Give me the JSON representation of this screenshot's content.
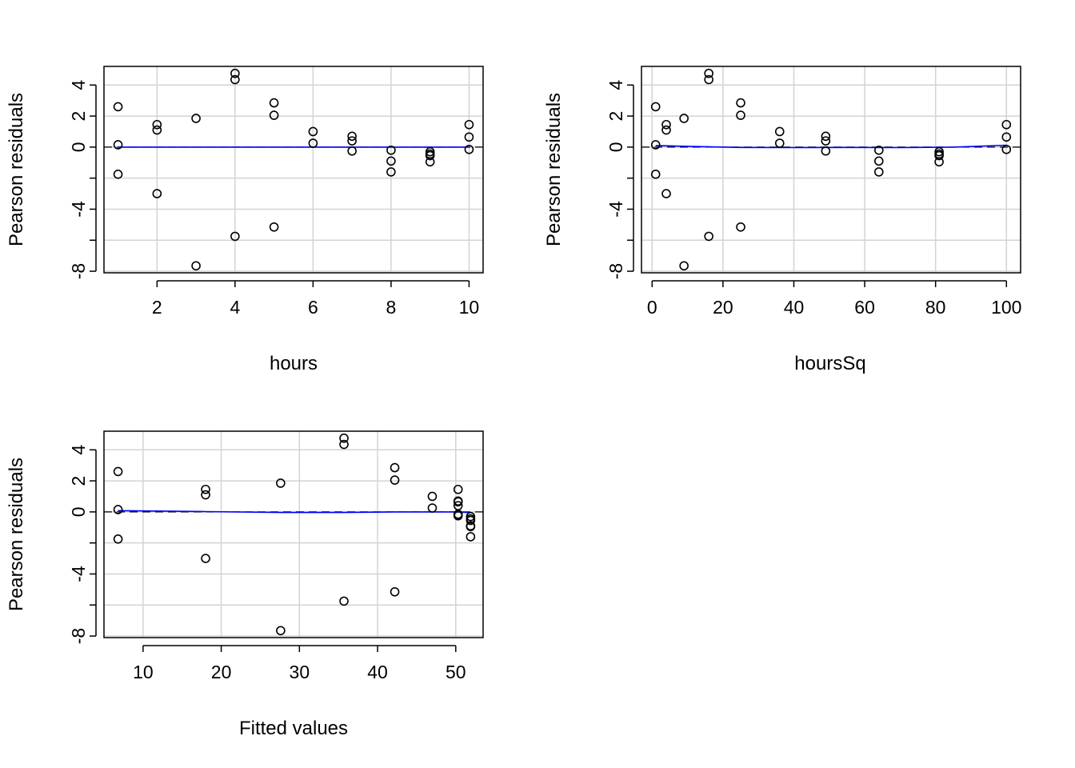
{
  "figure": {
    "background": "#ffffff",
    "grid_color": "#d3d3d3",
    "point_color": "#000000",
    "smooth_color": "#0000ff",
    "zero_line_color": "#000000"
  },
  "chart_data": [
    {
      "type": "scatter",
      "title": "",
      "xlabel": "hours",
      "ylabel": "Pearson residuals",
      "xlim": [
        0.64,
        10.36
      ],
      "ylim": [
        -8.1,
        5.2
      ],
      "x_ticks": [
        2,
        4,
        6,
        8,
        10
      ],
      "x_tick_labels": [
        "2",
        "4",
        "6",
        "8",
        "10"
      ],
      "y_ticks": [
        -8,
        -6,
        -4,
        -2,
        0,
        2,
        4
      ],
      "y_tick_labels": [
        "-8",
        "",
        "-4",
        "",
        "0",
        "2",
        "4"
      ],
      "grid": true,
      "x": [
        1,
        1,
        1,
        2,
        2,
        2,
        3,
        3,
        4,
        4,
        4,
        5,
        5,
        5,
        6,
        6,
        7,
        7,
        7,
        8,
        8,
        8,
        9,
        9,
        9,
        9,
        10,
        10,
        10
      ],
      "y": [
        2.6,
        0.15,
        -1.75,
        1.45,
        1.1,
        -3.0,
        1.85,
        -7.65,
        4.75,
        4.35,
        -5.75,
        2.85,
        2.05,
        -5.15,
        1.0,
        0.25,
        0.7,
        0.4,
        -0.25,
        -0.2,
        -0.9,
        -1.6,
        -0.3,
        -0.45,
        -0.55,
        -0.95,
        1.45,
        0.65,
        -0.15
      ],
      "smooth": {
        "x": [
          1,
          10
        ],
        "y": [
          0.0,
          0.0
        ]
      }
    },
    {
      "type": "scatter",
      "title": "",
      "xlabel": "hoursSq",
      "ylabel": "Pearson residuals",
      "xlim": [
        -3.0,
        104.0
      ],
      "ylim": [
        -8.1,
        5.2
      ],
      "x_ticks": [
        0,
        20,
        40,
        60,
        80,
        100
      ],
      "x_tick_labels": [
        "0",
        "20",
        "40",
        "60",
        "80",
        "100"
      ],
      "y_ticks": [
        -8,
        -6,
        -4,
        -2,
        0,
        2,
        4
      ],
      "y_tick_labels": [
        "-8",
        "",
        "-4",
        "",
        "0",
        "2",
        "4"
      ],
      "grid": true,
      "x": [
        1,
        1,
        1,
        4,
        4,
        4,
        9,
        9,
        16,
        16,
        16,
        25,
        25,
        25,
        36,
        36,
        49,
        49,
        49,
        64,
        64,
        64,
        81,
        81,
        81,
        81,
        100,
        100,
        100
      ],
      "y": [
        2.6,
        0.15,
        -1.75,
        1.45,
        1.1,
        -3.0,
        1.85,
        -7.65,
        4.75,
        4.35,
        -5.75,
        2.85,
        2.05,
        -5.15,
        1.0,
        0.25,
        0.7,
        0.4,
        -0.25,
        -0.2,
        -0.9,
        -1.6,
        -0.3,
        -0.45,
        -0.55,
        -0.95,
        1.45,
        0.65,
        -0.15
      ],
      "smooth": {
        "x": [
          1,
          10,
          25,
          40,
          55,
          70,
          85,
          100
        ],
        "y": [
          0.1,
          0.05,
          -0.02,
          -0.03,
          -0.02,
          -0.03,
          0.0,
          0.12
        ]
      }
    },
    {
      "type": "scatter",
      "title": "",
      "xlabel": "Fitted values",
      "ylabel": "Pearson residuals",
      "xlim": [
        5.0,
        53.5
      ],
      "ylim": [
        -8.1,
        5.2
      ],
      "x_ticks": [
        10,
        20,
        30,
        40,
        50
      ],
      "x_tick_labels": [
        "10",
        "20",
        "30",
        "40",
        "50"
      ],
      "y_ticks": [
        -8,
        -6,
        -4,
        -2,
        0,
        2,
        4
      ],
      "y_tick_labels": [
        "-8",
        "",
        "-4",
        "",
        "0",
        "2",
        "4"
      ],
      "grid": true,
      "x": [
        6.8,
        6.8,
        6.8,
        18.0,
        18.0,
        18.0,
        27.6,
        27.6,
        35.7,
        35.7,
        35.7,
        42.2,
        42.2,
        42.2,
        47.0,
        47.0,
        50.3,
        50.3,
        50.3,
        50.3,
        50.3,
        50.3,
        50.3,
        51.9,
        51.9,
        51.9,
        51.9,
        51.9,
        51.9
      ],
      "y": [
        2.6,
        0.15,
        -1.75,
        1.45,
        1.1,
        -3.0,
        1.85,
        -7.65,
        4.75,
        4.35,
        -5.75,
        2.85,
        2.05,
        -5.15,
        1.0,
        0.25,
        1.45,
        0.7,
        0.65,
        0.4,
        -0.15,
        -0.2,
        -0.25,
        -0.3,
        -0.45,
        -0.55,
        -0.9,
        -0.95,
        -1.6
      ],
      "smooth": {
        "x": [
          6.8,
          18.0,
          27.6,
          35.7,
          42.2,
          47.0,
          50.3,
          51.9
        ],
        "y": [
          0.08,
          0.02,
          -0.04,
          -0.04,
          0.0,
          0.0,
          0.0,
          -0.05
        ]
      }
    }
  ]
}
